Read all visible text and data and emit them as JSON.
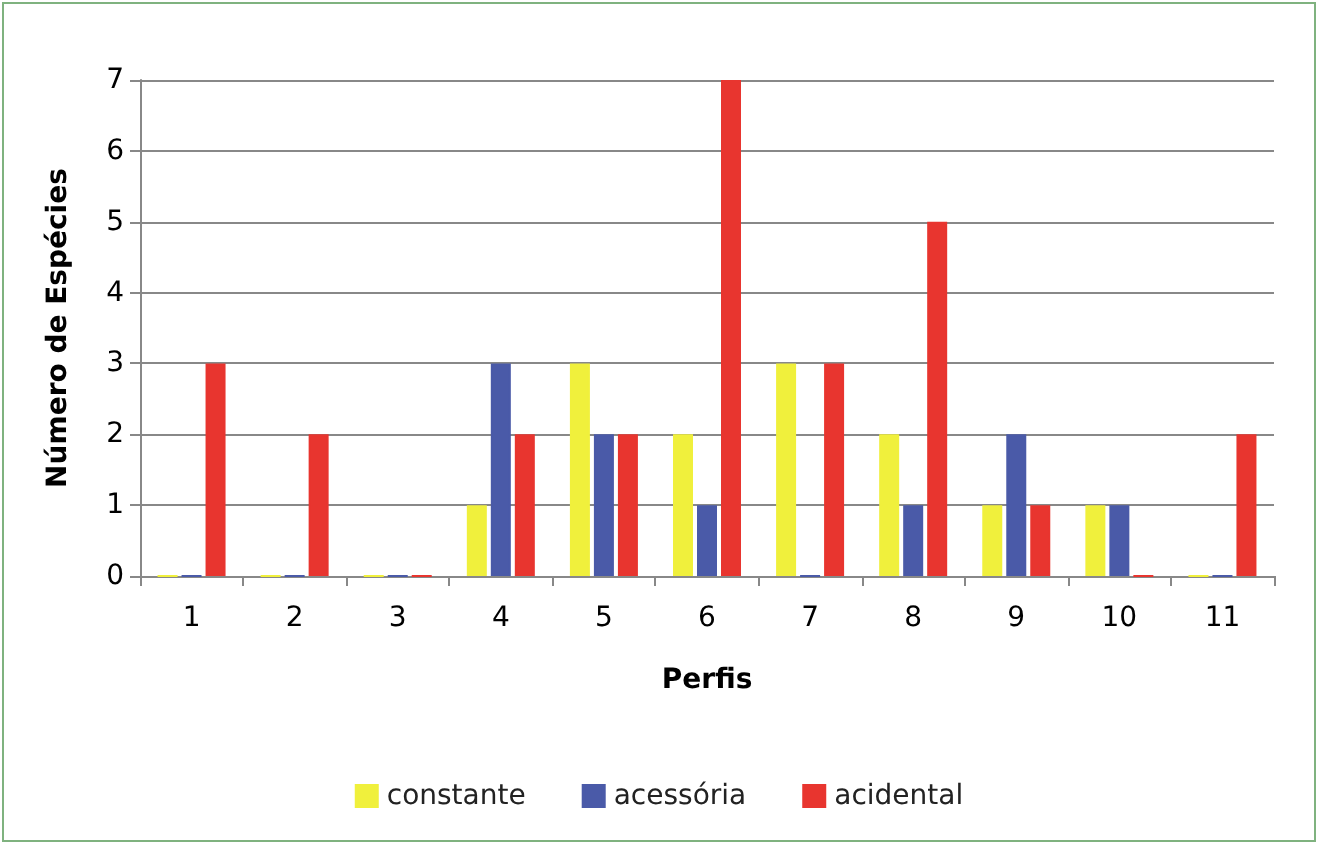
{
  "chart_data": {
    "type": "bar",
    "xlabel": "Perfis",
    "ylabel": "Número de Espécies",
    "categories": [
      "1",
      "2",
      "3",
      "4",
      "5",
      "6",
      "7",
      "8",
      "9",
      "10",
      "11"
    ],
    "series": [
      {
        "name": "constante",
        "color": "#f0f03c",
        "values": [
          0,
          0,
          0,
          1,
          3,
          2,
          3,
          2,
          1,
          1,
          0
        ]
      },
      {
        "name": "acessória",
        "color": "#4a5aa8",
        "values": [
          0,
          0,
          0,
          3,
          2,
          1,
          0,
          1,
          2,
          1,
          0
        ]
      },
      {
        "name": "acidental",
        "color": "#e8352f",
        "values": [
          3,
          2,
          0,
          2,
          2,
          7,
          3,
          5,
          1,
          0,
          2
        ]
      }
    ],
    "ylim": [
      0,
      7
    ],
    "yticks": [
      0,
      1,
      2,
      3,
      4,
      5,
      6,
      7
    ],
    "grid": "y",
    "legend": "bottom"
  }
}
